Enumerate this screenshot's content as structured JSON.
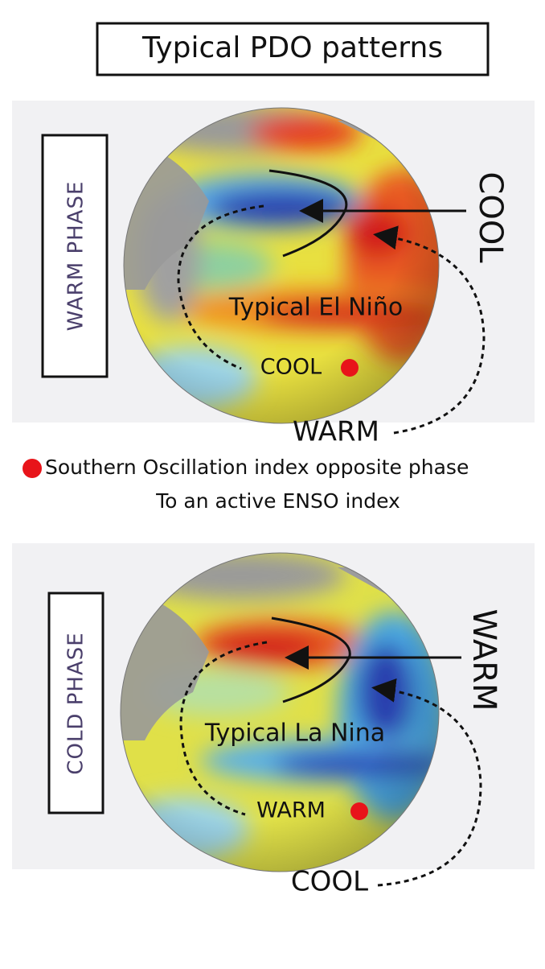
{
  "title": "Typical PDO patterns",
  "panels": [
    {
      "phase": "WARM PHASE",
      "side_label": "COOL",
      "center_label": "Typical El Niño",
      "dot_label": "COOL",
      "bottom_label": "WARM"
    },
    {
      "phase": "COLD PHASE",
      "side_label": "WARM",
      "center_label": "Typical La Nina",
      "dot_label": "WARM",
      "bottom_label": "COOL"
    }
  ],
  "legend": {
    "lines": [
      "Southern Oscillation index opposite phase",
      "To an active ENSO index"
    ]
  }
}
